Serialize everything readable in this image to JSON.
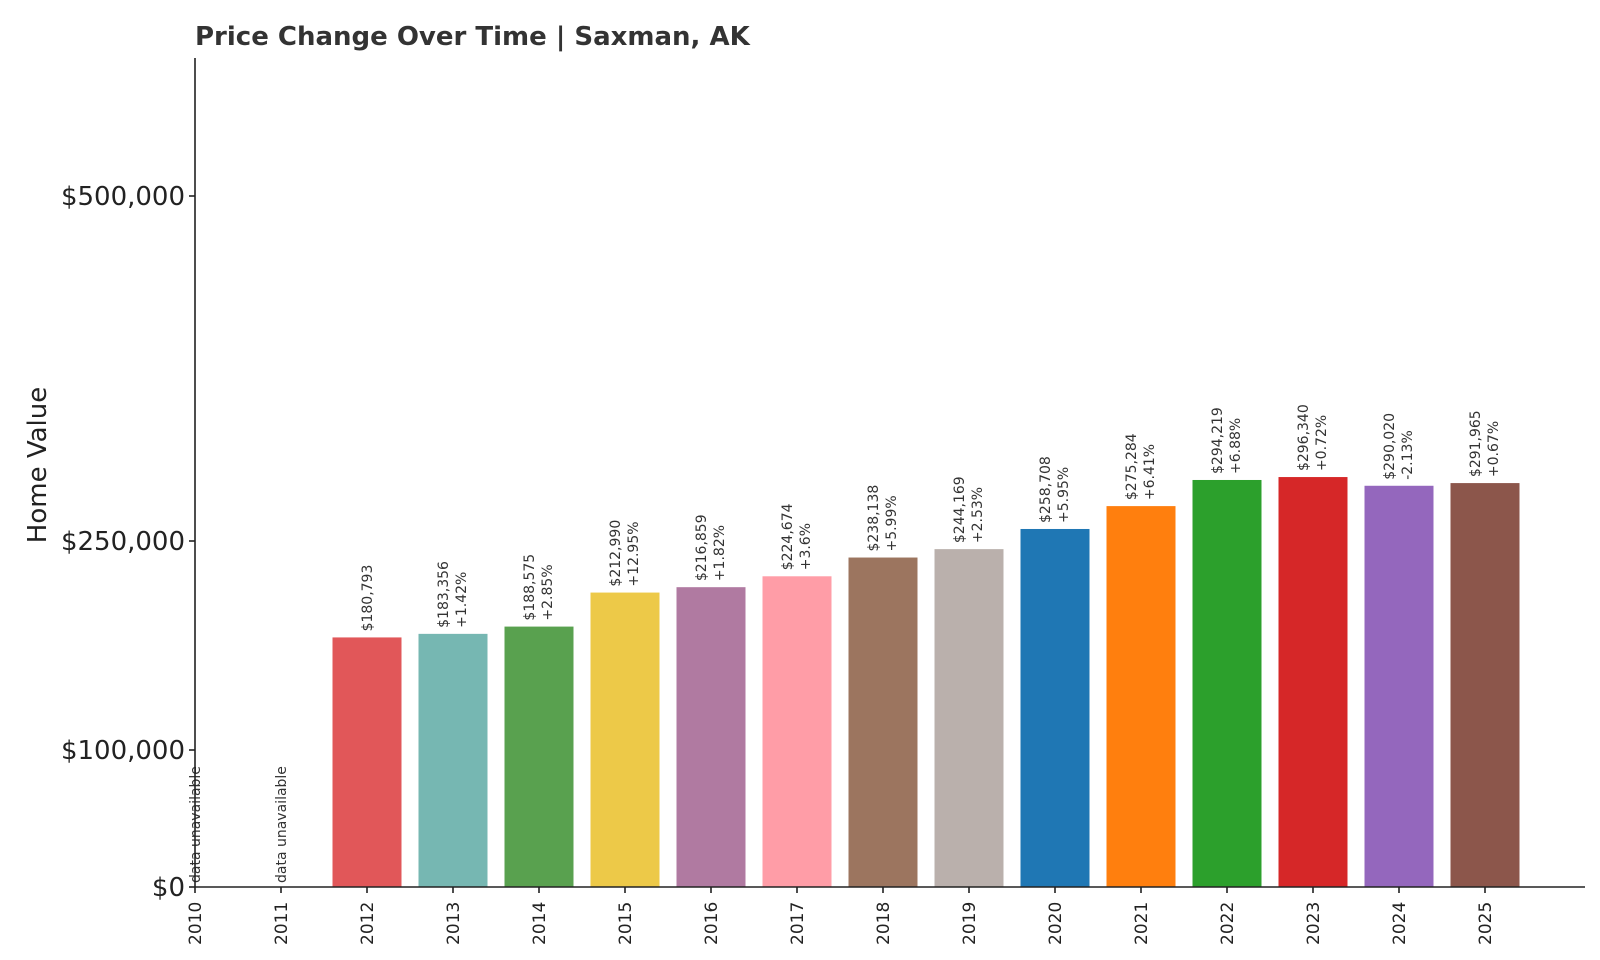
{
  "chart_data": {
    "type": "bar",
    "title": "Price Change Over Time | Saxman, AK",
    "xlabel": "",
    "ylabel": "Home Value",
    "yscale": "piecewise",
    "ylim": [
      0,
      600000
    ],
    "yticks": [
      0,
      100000,
      250000,
      500000
    ],
    "ytick_labels": [
      "$0",
      "$100,000",
      "$250,000",
      "$500,000"
    ],
    "grid": false,
    "legend": "none",
    "categories": [
      "2010",
      "2011",
      "2012",
      "2013",
      "2014",
      "2015",
      "2016",
      "2017",
      "2018",
      "2019",
      "2020",
      "2021",
      "2022",
      "2023",
      "2024",
      "2025"
    ],
    "values": [
      null,
      null,
      180793,
      183356,
      188575,
      212990,
      216859,
      224674,
      238138,
      244169,
      258708,
      275284,
      294219,
      296340,
      290020,
      291965
    ],
    "value_labels": [
      "",
      "",
      "$180,793",
      "$183,356",
      "$188,575",
      "$212,990",
      "$216,859",
      "$224,674",
      "$238,138",
      "$244,169",
      "$258,708",
      "$275,284",
      "$294,219",
      "$296,340",
      "$290,020",
      "$291,965"
    ],
    "change_labels": [
      "",
      "",
      "",
      "+1.42%",
      "+2.85%",
      "+12.95%",
      "+1.82%",
      "+3.6%",
      "+5.99%",
      "+2.53%",
      "+5.95%",
      "+6.41%",
      "+6.88%",
      "+0.72%",
      "-2.13%",
      "+0.67%"
    ],
    "unavailable_label": "data unavailable",
    "colors": [
      "#e15759",
      "#e15759",
      "#e15759",
      "#76b7b2",
      "#59a14f",
      "#edc948",
      "#b07aa1",
      "#ff9da7",
      "#9c755f",
      "#bab0ac",
      "#1f77b4",
      "#ff7f0e",
      "#2ca02c",
      "#d62728",
      "#9467bd",
      "#8c564b"
    ]
  }
}
